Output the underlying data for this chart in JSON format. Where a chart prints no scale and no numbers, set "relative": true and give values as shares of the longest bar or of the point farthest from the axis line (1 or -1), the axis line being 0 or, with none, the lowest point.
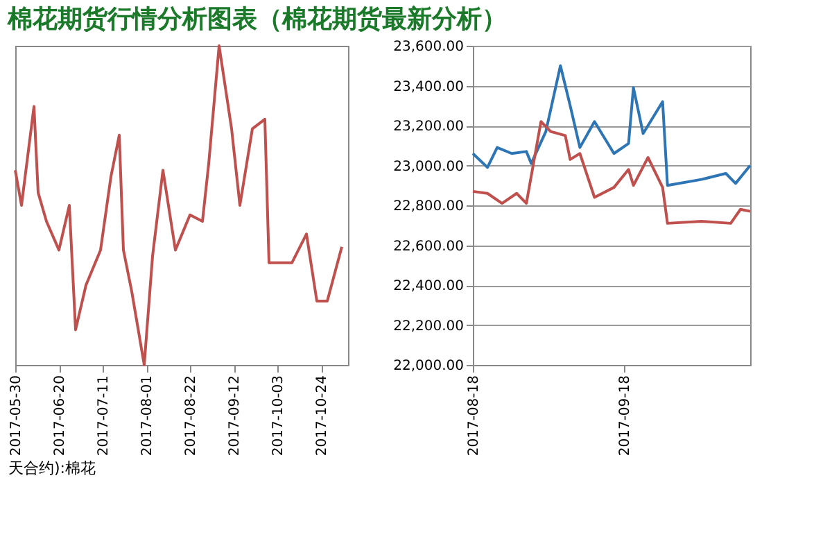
{
  "chart_data": [
    {
      "type": "line",
      "title": "棉花期货行情分析图表（棉花期货最新分析）",
      "relative": true,
      "xlim": [
        "2017-05-30",
        "2017-11-06"
      ],
      "xticks": [
        "2017-05-30",
        "2017-06-20",
        "2017-07-11",
        "2017-08-01",
        "2017-08-22",
        "2017-09-12",
        "2017-10-03",
        "2017-10-24"
      ],
      "annotations": [
        "天合约):棉花"
      ],
      "grid": false,
      "legend": false,
      "series": [
        {
          "color": "#c0504d",
          "x": [
            "2017-05-30",
            "2017-06-02",
            "2017-06-08",
            "2017-06-10",
            "2017-06-14",
            "2017-06-20",
            "2017-06-25",
            "2017-06-28",
            "2017-07-03",
            "2017-07-10",
            "2017-07-15",
            "2017-07-19",
            "2017-07-21",
            "2017-07-25",
            "2017-07-31",
            "2017-08-04",
            "2017-08-09",
            "2017-08-15",
            "2017-08-22",
            "2017-08-28",
            "2017-08-31",
            "2017-09-05",
            "2017-09-11",
            "2017-09-15",
            "2017-09-21",
            "2017-09-27",
            "2017-09-29",
            "2017-10-10",
            "2017-10-17",
            "2017-10-22",
            "2017-10-27",
            "2017-11-03"
          ],
          "values": [
            0.61,
            0.5,
            0.81,
            0.54,
            0.45,
            0.36,
            0.5,
            0.11,
            0.25,
            0.36,
            0.59,
            0.72,
            0.36,
            0.23,
            0,
            0.34,
            0.61,
            0.36,
            0.47,
            0.45,
            0.63,
            1,
            0.74,
            0.5,
            0.74,
            0.77,
            0.32,
            0.32,
            0.41,
            0.2,
            0.2,
            0.37
          ]
        }
      ]
    },
    {
      "type": "line",
      "ylim": [
        22000,
        23600
      ],
      "yticks": [
        {
          "value": 22000,
          "label": "22,000.00"
        },
        {
          "value": 22200,
          "label": "22,200.00"
        },
        {
          "value": 22400,
          "label": "22,400.00"
        },
        {
          "value": 22600,
          "label": "22,600.00"
        },
        {
          "value": 22800,
          "label": "22,800.00"
        },
        {
          "value": 23000,
          "label": "23,000.00"
        },
        {
          "value": 23200,
          "label": "23,200.00"
        },
        {
          "value": 23400,
          "label": "23,400.00"
        },
        {
          "value": 23600,
          "label": "23,600.00"
        }
      ],
      "xlim": [
        "2017-08-18",
        "2017-10-14"
      ],
      "xticks": [
        "2017-08-18",
        "2017-09-18"
      ],
      "grid": "y",
      "legend": false,
      "series": [
        {
          "color": "#2e75b6",
          "x": [
            "2017-08-18",
            "2017-08-21",
            "2017-08-23",
            "2017-08-26",
            "2017-08-29",
            "2017-08-30",
            "2017-09-02",
            "2017-09-05",
            "2017-09-07",
            "2017-09-09",
            "2017-09-12",
            "2017-09-16",
            "2017-09-19",
            "2017-09-20",
            "2017-09-22",
            "2017-09-26",
            "2017-09-27",
            "2017-10-04",
            "2017-10-09",
            "2017-10-11",
            "2017-10-14"
          ],
          "values": [
            23060,
            22990,
            23090,
            23060,
            23070,
            23010,
            23170,
            23500,
            23300,
            23090,
            23220,
            23060,
            23110,
            23390,
            23160,
            23320,
            22900,
            22930,
            22960,
            22910,
            23000
          ]
        },
        {
          "color": "#c0504d",
          "x": [
            "2017-08-18",
            "2017-08-21",
            "2017-08-24",
            "2017-08-27",
            "2017-08-29",
            "2017-09-01",
            "2017-09-03",
            "2017-09-06",
            "2017-09-07",
            "2017-09-09",
            "2017-09-12",
            "2017-09-16",
            "2017-09-19",
            "2017-09-20",
            "2017-09-23",
            "2017-09-26",
            "2017-09-27",
            "2017-10-04",
            "2017-10-10",
            "2017-10-12",
            "2017-10-14"
          ],
          "values": [
            22870,
            22860,
            22810,
            22860,
            22810,
            23220,
            23170,
            23150,
            23030,
            23060,
            22840,
            22890,
            22980,
            22900,
            23040,
            22890,
            22710,
            22720,
            22710,
            22780,
            22770
          ]
        }
      ]
    }
  ]
}
